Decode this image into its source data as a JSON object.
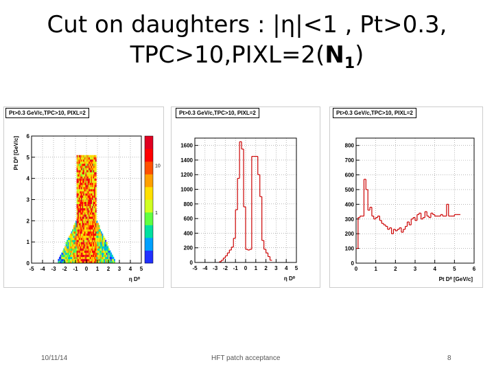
{
  "slide": {
    "title_line1": "Cut on daughters : |η|<1 , Pt>0.3,",
    "title_line2_prefix": "TPC>10,PIXL=2(",
    "title_line2_bold": "N",
    "title_line2_sub": "1",
    "title_line2_suffix": ")"
  },
  "footer": {
    "date": "10/11/14",
    "center": "HFT patch acceptance",
    "page": "8"
  },
  "colors": {
    "hist_line": "#cc0000",
    "grid": "#888888"
  },
  "chart_data": [
    {
      "type": "heatmap",
      "title": "Pt>0.3 GeV/c,TPC>10, PIXL=2",
      "xlabel": "η D⁰",
      "ylabel": "Pt D⁰ [GeV/c]",
      "xlim": [
        -5,
        5
      ],
      "ylim": [
        0,
        6
      ],
      "xticks": [
        "-5",
        "-4",
        "-3",
        "-2",
        "-1",
        "0",
        "1",
        "2",
        "3",
        "4",
        "5"
      ],
      "yticks": [
        "0",
        "1",
        "2",
        "3",
        "4",
        "5",
        "6"
      ],
      "zscale": "log",
      "zticks": [
        "1",
        "10"
      ],
      "grid": true,
      "description_values": {
        "core_eta_range": [
          -0.9,
          0.9
        ],
        "core_pt_max": 5.0,
        "low_pt_wing_eta_range": [
          -2.6,
          2.6
        ]
      }
    },
    {
      "type": "bar",
      "title": "Pt>0.3 GeV/c,TPC>10, PIXL=2",
      "xlabel": "η D⁰",
      "xlim": [
        -5,
        5
      ],
      "ylim": [
        0,
        1700
      ],
      "xticks": [
        "-5",
        "-4",
        "-3",
        "-2",
        "-1",
        "0",
        "1",
        "2",
        "3",
        "4",
        "5"
      ],
      "yticks": [
        "0",
        "200",
        "400",
        "600",
        "800",
        "1000",
        "1200",
        "1400",
        "1600"
      ],
      "grid": true,
      "bin_edges": [
        -2.6,
        -2.4,
        -2.2,
        -2.0,
        -1.8,
        -1.6,
        -1.4,
        -1.2,
        -1.0,
        -0.8,
        -0.6,
        -0.4,
        -0.2,
        0.0,
        0.2,
        0.4,
        0.6,
        0.8,
        1.0,
        1.2,
        1.4,
        1.6,
        1.8,
        2.0,
        2.2,
        2.4,
        2.6
      ],
      "values": [
        10,
        30,
        60,
        90,
        130,
        170,
        210,
        330,
        720,
        1150,
        1650,
        1550,
        760,
        180,
        170,
        180,
        1450,
        1450,
        1450,
        1200,
        900,
        300,
        180,
        130,
        80,
        30
      ]
    },
    {
      "type": "bar",
      "title": "Pt>0.3 GeV/c,TPC>10, PIXL=2",
      "xlabel": "Pt D⁰ [GeV/c]",
      "xlim": [
        0,
        6
      ],
      "ylim": [
        0,
        850
      ],
      "xticks": [
        "0",
        "1",
        "2",
        "3",
        "4",
        "5",
        "6"
      ],
      "yticks": [
        "0",
        "100",
        "200",
        "300",
        "400",
        "500",
        "600",
        "700",
        "800"
      ],
      "grid": true,
      "bin_edges": [
        0.0,
        0.1,
        0.2,
        0.3,
        0.4,
        0.5,
        0.6,
        0.7,
        0.8,
        0.9,
        1.0,
        1.1,
        1.2,
        1.3,
        1.4,
        1.5,
        1.6,
        1.7,
        1.8,
        1.9,
        2.0,
        2.1,
        2.2,
        2.3,
        2.4,
        2.5,
        2.6,
        2.7,
        2.8,
        2.9,
        3.0,
        3.1,
        3.2,
        3.3,
        3.4,
        3.5,
        3.6,
        3.7,
        3.8,
        3.9,
        4.0,
        4.1,
        4.2,
        4.3,
        4.4,
        4.5,
        4.6,
        4.7,
        4.8,
        4.9,
        5.0,
        5.1,
        5.2,
        5.3
      ],
      "values": [
        100,
        310,
        320,
        320,
        570,
        500,
        360,
        380,
        320,
        300,
        310,
        320,
        290,
        270,
        260,
        250,
        230,
        240,
        200,
        230,
        220,
        230,
        240,
        210,
        230,
        250,
        280,
        260,
        300,
        310,
        290,
        330,
        340,
        300,
        310,
        350,
        320,
        310,
        340,
        330,
        320,
        320,
        320,
        330,
        320,
        320,
        400,
        320,
        320,
        320,
        330,
        330,
        330
      ]
    }
  ]
}
